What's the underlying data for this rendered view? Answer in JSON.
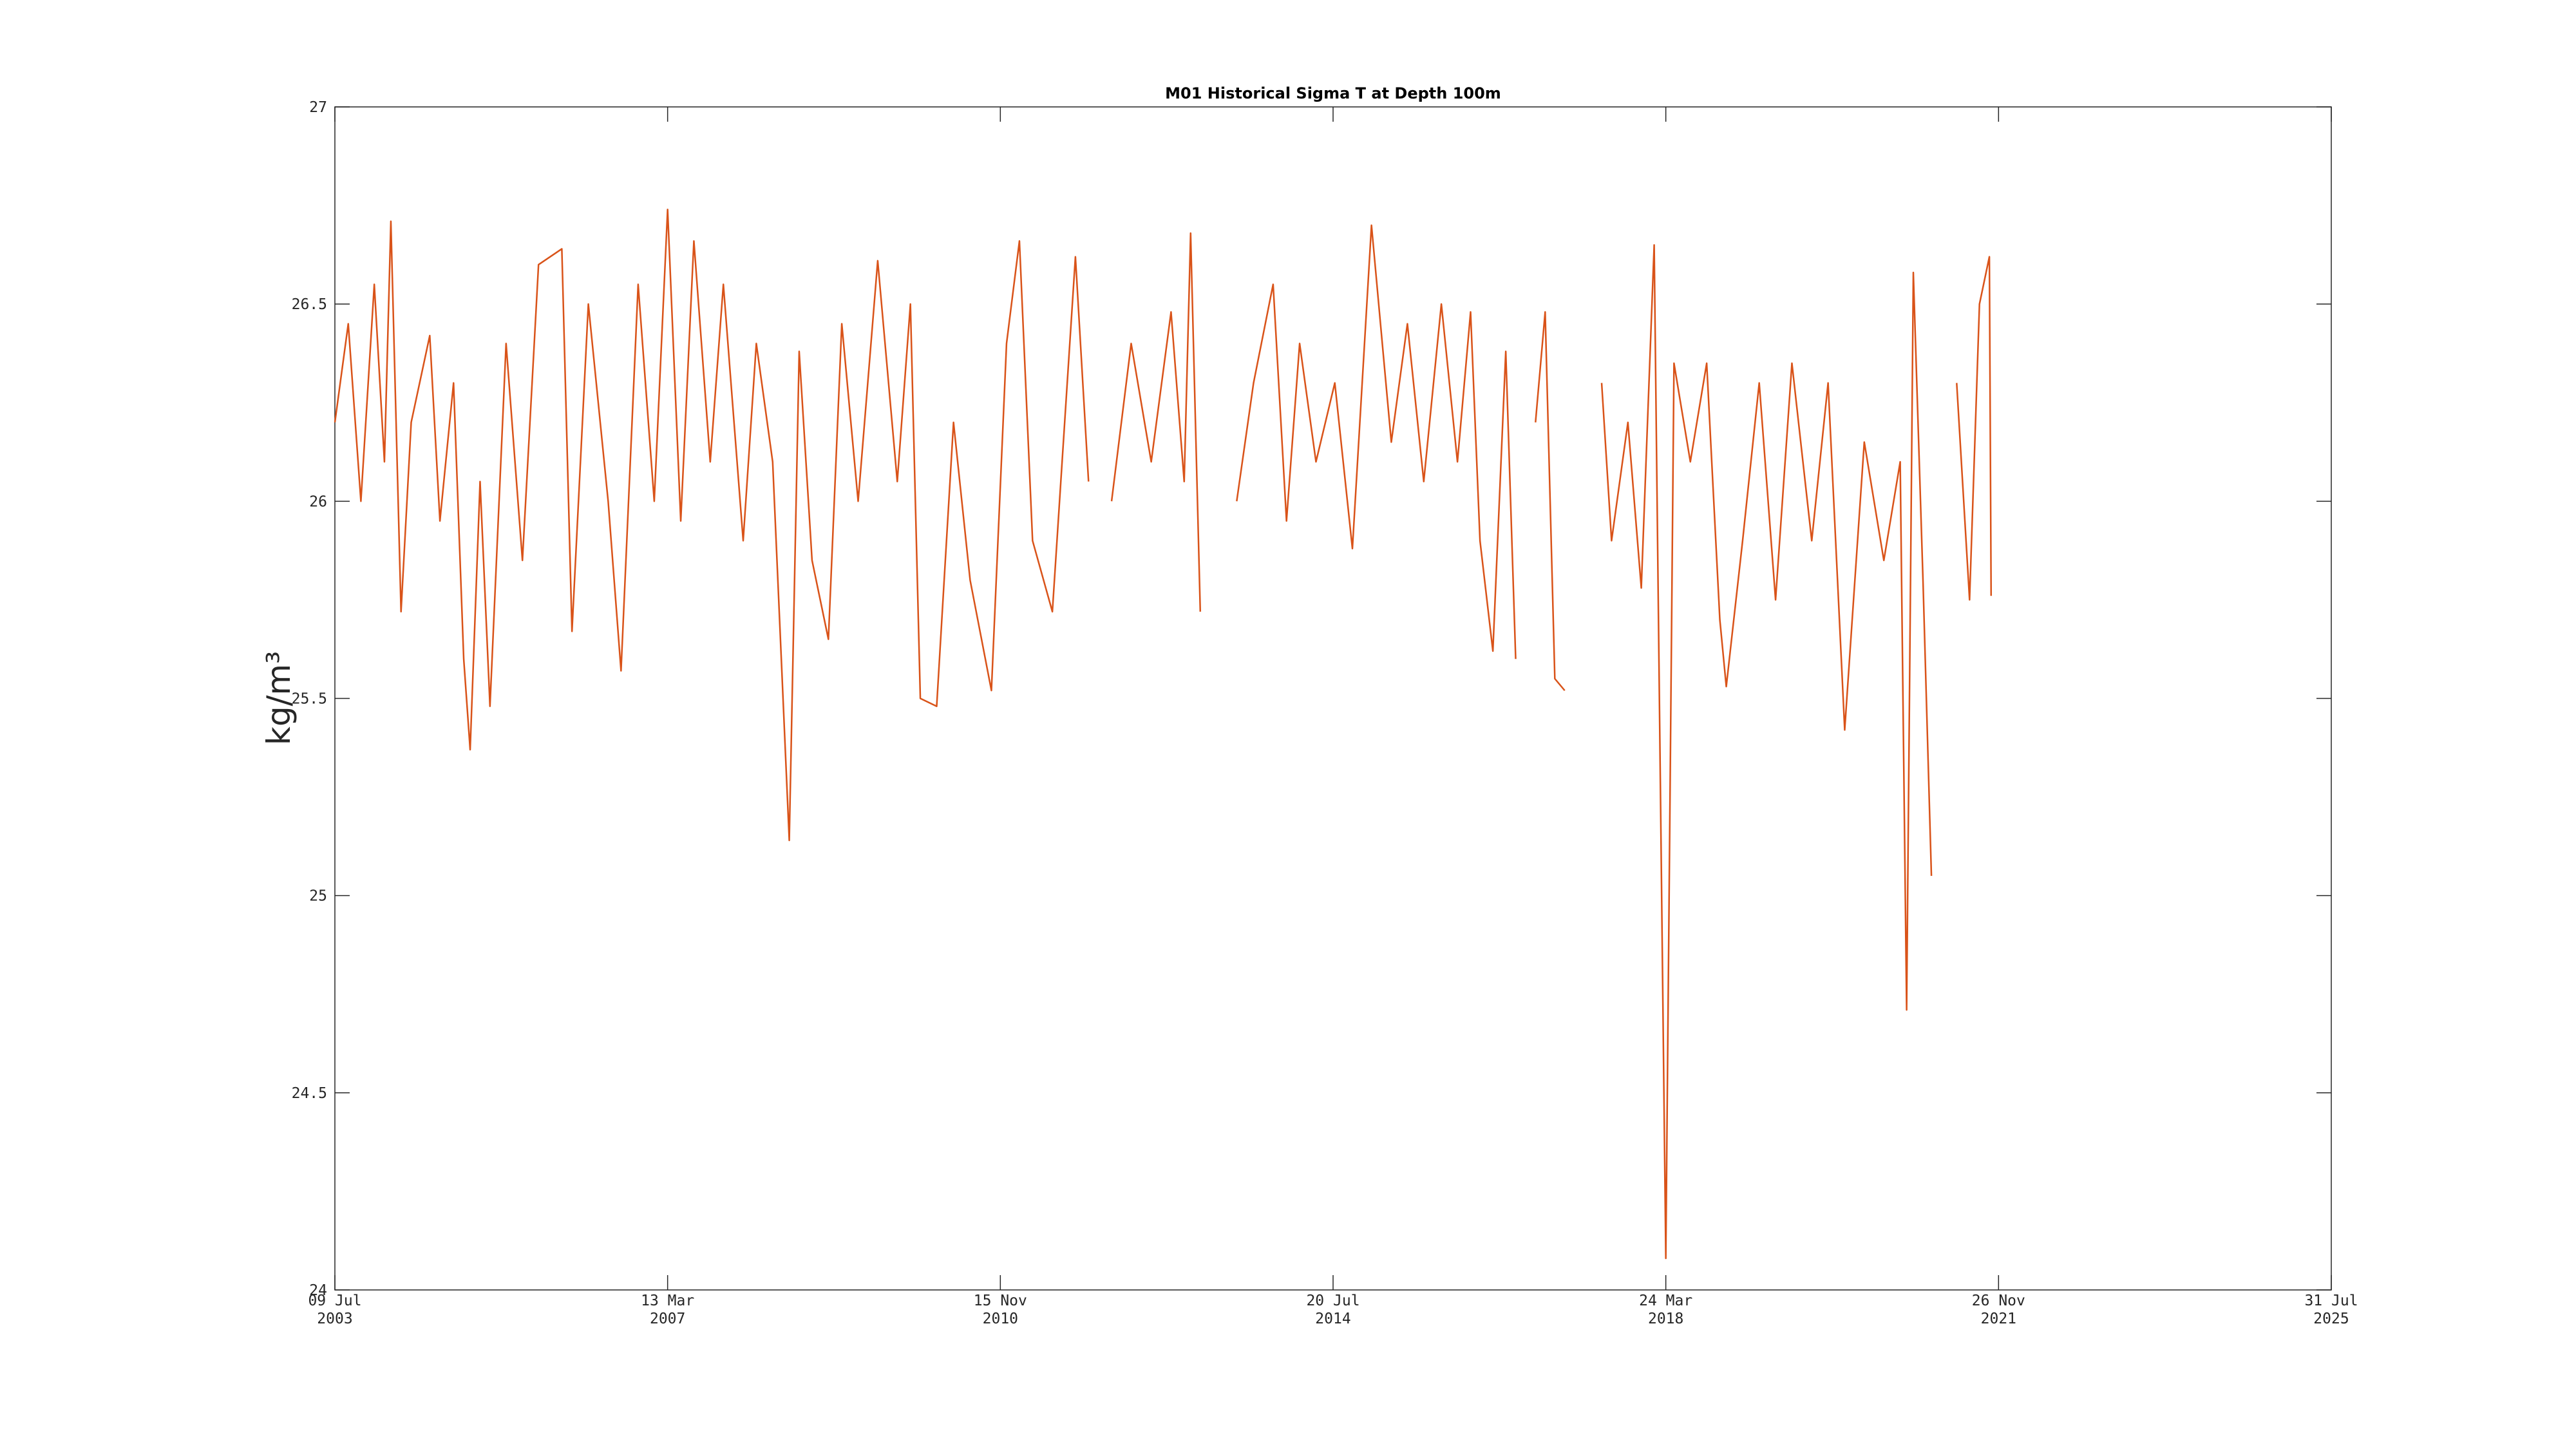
{
  "chart_data": {
    "type": "line",
    "title": "M01 Historical Sigma T at Depth 100m",
    "y_label": "kg/m³",
    "color": "#D95319",
    "xlim": [
      "2003-07-09",
      "2025-07-31"
    ],
    "xticks": [
      {
        "value": "2003-07-09",
        "label": [
          "09 Jul",
          "2003"
        ]
      },
      {
        "value": "2007-03-13",
        "label": [
          "13 Mar",
          "2007"
        ]
      },
      {
        "value": "2010-11-15",
        "label": [
          "15 Nov",
          "2010"
        ]
      },
      {
        "value": "2014-07-20",
        "label": [
          "20 Jul",
          "2014"
        ]
      },
      {
        "value": "2018-03-24",
        "label": [
          "24 Mar",
          "2018"
        ]
      },
      {
        "value": "2021-11-26",
        "label": [
          "26 Nov",
          "2021"
        ]
      },
      {
        "value": "2025-07-31",
        "label": [
          "31 Jul",
          "2025"
        ]
      }
    ],
    "ylim": [
      24,
      27
    ],
    "yticks": [
      24,
      24.5,
      25,
      25.5,
      26,
      26.5,
      27
    ],
    "x": [
      "2003-07-09",
      "2003-09-01",
      "2003-10-22",
      "2003-12-15",
      "2004-01-25",
      "2004-02-20",
      "2004-04-01",
      "2004-05-12",
      "2004-07-26",
      "2004-09-05",
      "2004-10-30",
      "2004-12-10",
      "2005-01-05",
      "2005-02-14",
      "2005-03-26",
      "2005-05-30",
      "2005-08-04",
      "2005-10-08",
      "2006-01-10",
      "2006-02-20",
      "2006-04-27",
      "2006-07-16",
      "2006-09-06",
      "2006-11-14",
      "2007-01-18",
      "2007-03-13",
      "2007-05-05",
      "2007-06-27",
      "2007-09-01",
      "2007-10-24",
      "2008-01-12",
      "2008-03-05",
      "2008-05-10",
      "2008-07-16",
      "2008-08-25",
      "2008-10-16",
      "2008-12-21",
      "2009-02-13",
      "2009-04-20",
      "2009-07-08",
      "2009-09-25",
      "2009-11-17",
      "2009-12-27",
      "2010-03-03",
      "2010-05-10",
      "2010-07-16",
      "2010-10-10",
      "2010-12-10",
      "2011-01-31",
      "2011-03-25",
      "2011-06-13",
      "2011-09-14",
      "2011-11-06",
      "2011-12-28",
      "2012-02-07",
      "2012-04-26",
      "2012-07-16",
      "2012-10-04",
      "2012-11-26",
      "2012-12-22",
      "2013-01-30",
      "2013-04-07",
      "2013-06-26",
      "2013-09-02",
      "2013-11-20",
      "2014-01-13",
      "2014-03-07",
      "2014-05-12",
      "2014-07-27",
      "2014-10-06",
      "2014-12-22",
      "2015-03-12",
      "2015-05-16",
      "2015-07-21",
      "2015-09-30",
      "2015-12-04",
      "2016-01-26",
      "2016-03-04",
      "2016-04-25",
      "2016-06-16",
      "2016-07-26",
      "2016-09-05",
      "2016-10-14",
      "2016-11-22",
      "2016-12-31",
      "2017-02-09",
      "2017-04-17",
      "2017-07-08",
      "2017-08-17",
      "2017-10-22",
      "2017-12-15",
      "2018-02-05",
      "2018-03-24",
      "2018-04-26",
      "2018-07-01",
      "2018-09-05",
      "2018-10-28",
      "2018-11-23",
      "2019-01-28",
      "2019-04-05",
      "2019-06-10",
      "2019-08-15",
      "2019-11-03",
      "2020-01-08",
      "2020-03-15",
      "2020-06-02",
      "2020-08-20",
      "2020-10-25",
      "2020-11-20",
      "2020-12-17",
      "2021-01-25",
      "2021-02-28",
      "2021-04-05",
      "2021-06-10",
      "2021-08-01",
      "2021-09-10",
      "2021-10-20",
      "2021-10-27"
    ],
    "values": [
      26.2,
      26.45,
      26.0,
      26.55,
      26.1,
      26.71,
      25.72,
      26.2,
      26.42,
      25.95,
      26.3,
      25.6,
      25.37,
      26.05,
      25.48,
      26.4,
      25.85,
      26.6,
      26.64,
      25.67,
      26.5,
      26.0,
      25.57,
      26.55,
      26.0,
      26.74,
      25.95,
      26.66,
      26.1,
      26.55,
      25.9,
      26.4,
      26.1,
      25.14,
      26.38,
      25.85,
      25.65,
      26.45,
      26.0,
      26.61,
      26.05,
      26.5,
      25.5,
      25.48,
      26.2,
      25.8,
      25.52,
      26.4,
      26.66,
      25.9,
      25.72,
      26.62,
      26.05,
      null,
      26.0,
      26.4,
      26.1,
      26.48,
      26.05,
      26.68,
      25.72,
      null,
      26.0,
      26.3,
      26.55,
      25.95,
      26.4,
      26.1,
      26.3,
      25.88,
      26.7,
      26.15,
      26.45,
      26.05,
      26.5,
      26.1,
      26.48,
      25.9,
      25.62,
      26.38,
      25.6,
      null,
      26.2,
      26.48,
      25.55,
      25.52,
      null,
      26.3,
      25.9,
      26.2,
      25.78,
      26.65,
      24.08,
      26.35,
      26.1,
      26.35,
      25.7,
      25.53,
      25.9,
      26.3,
      25.75,
      26.35,
      25.9,
      26.3,
      25.42,
      26.15,
      25.85,
      26.1,
      24.71,
      26.58,
      25.8,
      25.05,
      null,
      26.3,
      25.75,
      26.5,
      26.62,
      25.76
    ]
  }
}
